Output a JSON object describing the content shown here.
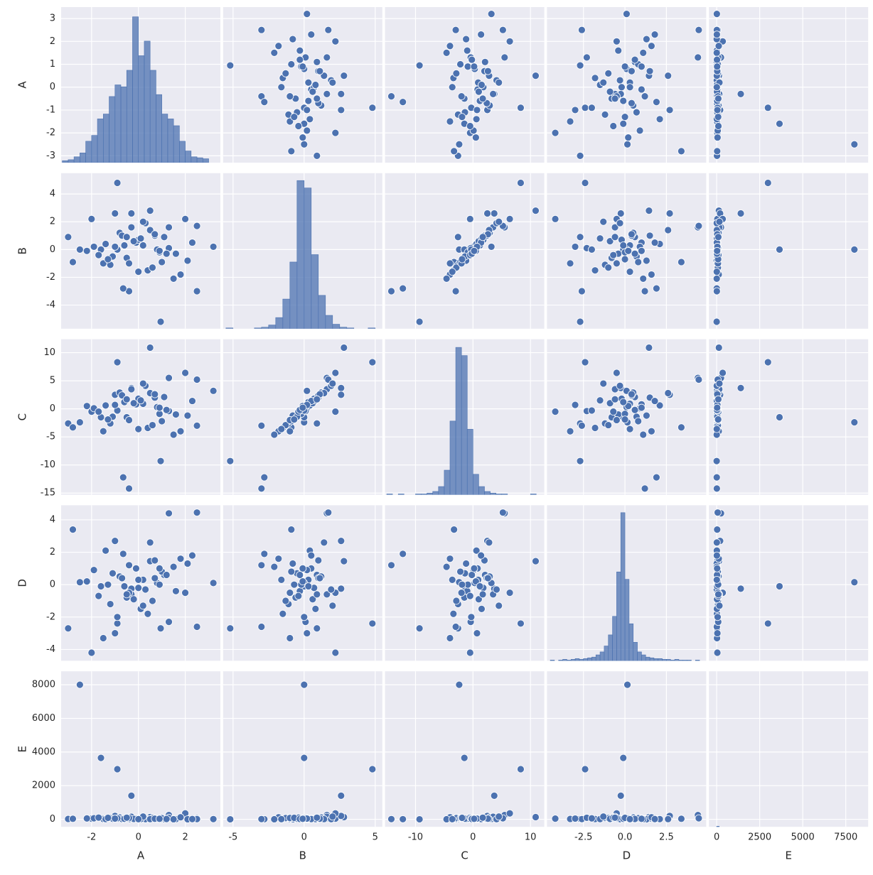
{
  "chart_data": {
    "type": "pairplot",
    "color": "#4c72b0",
    "grid": true,
    "series": [
      {
        "name": "A",
        "lim": [
          -3.3,
          3.5
        ],
        "xticks": [
          -2,
          0,
          2
        ],
        "yticks": [
          -3,
          -2,
          -1,
          0,
          1,
          2,
          3
        ],
        "values": [
          -2.5,
          -1.6,
          -0.9,
          -0.3,
          0.95,
          3.2,
          0.5,
          -0.4,
          -0.65,
          1.3,
          2.5,
          -2.0,
          -3.0,
          -2.8,
          2.5,
          -1.0,
          2.0,
          -1.5,
          0.7,
          0.2,
          -0.5,
          1.1,
          -1.2,
          0.8,
          -0.1,
          1.6,
          -0.8,
          0.4,
          -1.9,
          0.0,
          2.1,
          -0.3,
          0.9,
          -1.4,
          0.6,
          -0.7,
          1.3,
          -1.1,
          0.3,
          1.8,
          -0.2,
          -2.2,
          0.1,
          1.0,
          -0.6,
          0.5,
          -1.7,
          1.5,
          -0.9,
          0.7,
          -0.4,
          2.3,
          -1.3,
          0.2,
          1.2,
          -1.0,
          0.0,
          -0.5,
          0.9
        ],
        "hist": {
          "bins": [
            -3.25,
            -3.0,
            -2.75,
            -2.5,
            -2.25,
            -2.0,
            -1.75,
            -1.5,
            -1.25,
            -1.0,
            -0.75,
            -0.5,
            -0.25,
            0.0,
            0.25,
            0.5,
            0.75,
            1.0,
            1.25,
            1.5,
            1.75,
            2.0,
            2.25,
            2.5,
            2.75,
            3.0,
            3.25
          ],
          "counts": [
            2,
            3,
            6,
            10,
            22,
            28,
            45,
            50,
            68,
            80,
            78,
            95,
            150,
            110,
            125,
            95,
            70,
            50,
            45,
            38,
            22,
            12,
            6,
            5,
            4,
            0
          ],
          "ylim": [
            0,
            160
          ]
        }
      },
      {
        "name": "B",
        "lim": [
          -5.7,
          5.5
        ],
        "xticks": [
          -5,
          0,
          5
        ],
        "yticks": [
          -4,
          -2,
          0,
          2,
          4
        ],
        "values": [
          0.0,
          0.0,
          4.8,
          2.6,
          -5.2,
          0.2,
          2.8,
          -3.0,
          -2.8,
          1.6,
          1.7,
          2.2,
          0.9,
          -0.9,
          -3.0,
          2.6,
          2.2,
          -1.0,
          1.0,
          0.3,
          -0.6,
          0.9,
          -1.1,
          0.0,
          0.5,
          -0.3,
          1.2,
          -1.5,
          0.2,
          0.7,
          -0.8,
          1.6,
          -0.2,
          0.4,
          -1.3,
          1.0,
          0.1,
          -0.5,
          1.9,
          -1.8,
          0.6,
          -0.1,
          0.8,
          -0.9,
          0.3,
          1.4,
          -0.4,
          -2.1,
          0.0,
          1.1,
          -1.0,
          0.5,
          -0.7,
          2.0,
          -0.3,
          0.2,
          -1.6,
          0.9,
          -0.1
        ],
        "hist": {
          "bins": [
            -5.5,
            -5.0,
            -4.5,
            -4.0,
            -3.5,
            -3.0,
            -2.5,
            -2.0,
            -1.5,
            -1.0,
            -0.5,
            0.0,
            0.5,
            1.0,
            1.5,
            2.0,
            2.5,
            3.0,
            3.5,
            4.0,
            4.5,
            5.0
          ],
          "counts": [
            1,
            0,
            0,
            0,
            1,
            2,
            5,
            15,
            40,
            90,
            200,
            190,
            100,
            45,
            18,
            6,
            2,
            1,
            0,
            0,
            1
          ],
          "ylim": [
            0,
            210
          ]
        }
      },
      {
        "name": "C",
        "lim": [
          -15.3,
          12.4
        ],
        "xticks": [
          -10,
          0,
          10
        ],
        "yticks": [
          -15,
          -10,
          -5,
          0,
          5,
          10
        ],
        "values": [
          -2.4,
          -1.5,
          8.3,
          3.7,
          -9.3,
          3.2,
          10.9,
          -14.2,
          -12.2,
          5.5,
          5.2,
          -0.5,
          -2.6,
          -3.3,
          -3.0,
          2.5,
          6.4,
          -4.0,
          2.0,
          0.9,
          -1.5,
          2.1,
          -2.6,
          0.3,
          0.8,
          -1.0,
          2.9,
          -3.4,
          0.1,
          1.8,
          -1.2,
          3.5,
          -0.9,
          0.6,
          -2.9,
          2.4,
          -0.4,
          -1.4,
          4.1,
          -4.0,
          1.0,
          0.5,
          1.5,
          -2.2,
          1.2,
          2.8,
          -0.5,
          -4.6,
          -0.3,
          2.6,
          -2.0,
          1.4,
          -1.9,
          4.5,
          -0.2,
          0.7,
          -3.6,
          1.7,
          0.2
        ],
        "hist": {
          "bins": [
            -15,
            -14,
            -13,
            -12,
            -11,
            -10,
            -9,
            -8,
            -7,
            -6,
            -5,
            -4,
            -3,
            -2,
            -1,
            0,
            1,
            2,
            3,
            4,
            5,
            6,
            7,
            8,
            9,
            10,
            11
          ],
          "counts": [
            1,
            0,
            1,
            0,
            0,
            1,
            1,
            2,
            4,
            10,
            30,
            90,
            180,
            170,
            80,
            25,
            10,
            4,
            2,
            1,
            1,
            0,
            0,
            0,
            0,
            1
          ],
          "ylim": [
            0,
            190
          ]
        }
      },
      {
        "name": "D",
        "lim": [
          -4.7,
          4.9
        ],
        "xticks": [
          -2.5,
          {
            "value": 0,
            "label": "0.0"
          },
          2.5
        ],
        "yticks": [
          -4,
          -2,
          0,
          2,
          4
        ],
        "values": [
          0.15,
          -0.1,
          -2.4,
          -0.25,
          -2.7,
          0.1,
          1.45,
          1.2,
          1.9,
          4.4,
          4.45,
          -4.2,
          -2.7,
          3.4,
          -2.6,
          2.7,
          -0.5,
          -3.3,
          1.5,
          0.3,
          -0.8,
          0.6,
          -1.2,
          0.1,
          1.0,
          -0.4,
          0.5,
          -1.8,
          0.9,
          -0.2,
          1.3,
          -0.6,
          0.0,
          2.1,
          -1.0,
          0.4,
          -2.3,
          0.7,
          -0.3,
          1.6,
          -0.9,
          0.2,
          -1.5,
          0.8,
          -0.1,
          2.6,
          -0.7,
          1.1,
          -2.0,
          0.4,
          -0.5,
          1.8,
          0.0,
          -1.3,
          0.6,
          -3.0,
          0.3,
          -0.6,
          1.0
        ],
        "hist": {
          "bins": [
            -4.5,
            -4.25,
            -4.0,
            -3.75,
            -3.5,
            -3.25,
            -3.0,
            -2.75,
            -2.5,
            -2.25,
            -2.0,
            -1.75,
            -1.5,
            -1.25,
            -1.0,
            -0.75,
            -0.5,
            -0.25,
            0.0,
            0.25,
            0.5,
            0.75,
            1.0,
            1.25,
            1.5,
            1.75,
            2.0,
            2.25,
            2.5,
            2.75,
            3.0,
            3.25,
            3.5,
            3.75,
            4.0,
            4.25,
            4.5
          ],
          "counts": [
            1,
            0,
            1,
            2,
            1,
            2,
            3,
            2,
            3,
            4,
            5,
            8,
            12,
            20,
            35,
            60,
            120,
            200,
            110,
            50,
            25,
            12,
            8,
            5,
            4,
            3,
            3,
            2,
            2,
            1,
            2,
            1,
            1,
            1,
            0,
            1
          ],
          "ylim": [
            0,
            210
          ]
        }
      },
      {
        "name": "E",
        "lim": [
          -450,
          8800
        ],
        "xticks": [
          0,
          2500,
          5000,
          7500
        ],
        "yticks": [
          0,
          2000,
          4000,
          6000,
          8000
        ],
        "values": [
          8000,
          3650,
          2980,
          1400,
          0,
          10,
          130,
          10,
          5,
          250,
          60,
          40,
          20,
          30,
          10,
          200,
          350,
          20,
          50,
          12,
          30,
          5,
          80,
          20,
          45,
          8,
          110,
          15,
          60,
          25,
          3,
          150,
          40,
          10,
          70,
          18,
          90,
          35,
          6,
          120,
          22,
          50,
          14,
          65,
          28,
          9,
          100,
          4,
          55,
          33,
          75,
          11,
          85,
          160,
          19,
          42,
          7,
          95,
          27
        ],
        "hist": {
          "bins": [
            -150,
            0,
            150
          ],
          "counts": [
            0,
            4
          ],
          "ylim": [
            0,
            1000
          ]
        }
      }
    ]
  }
}
